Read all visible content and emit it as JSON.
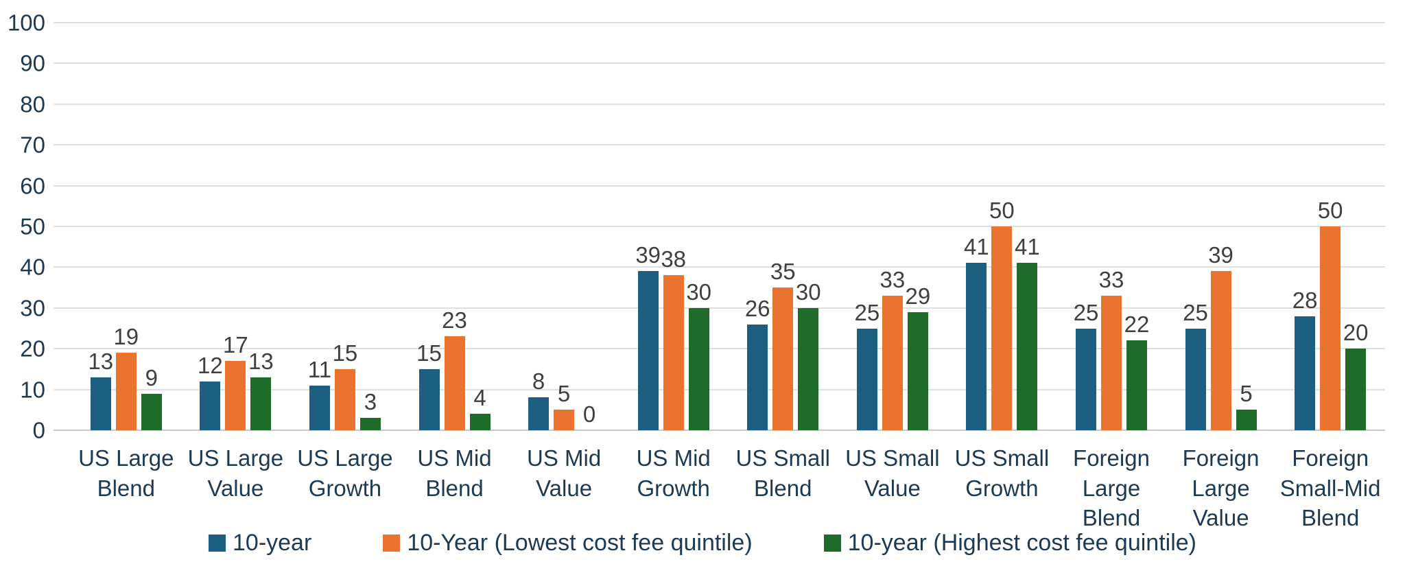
{
  "chart_data": {
    "type": "bar",
    "title": "",
    "xlabel": "",
    "ylabel": "",
    "categories": [
      "US Large Blend",
      "US Large Value",
      "US Large Growth",
      "US Mid Blend",
      "US Mid Value",
      "US Mid Growth",
      "US Small Blend",
      "US Small Value",
      "US Small Growth",
      "Foreign Large Blend",
      "Foreign Large Value",
      "Foreign Small-Mid Blend"
    ],
    "series": [
      {
        "name": "10-year",
        "color": "#1D5F80",
        "values": [
          13,
          12,
          11,
          15,
          8,
          39,
          26,
          25,
          41,
          25,
          25,
          28
        ]
      },
      {
        "name": "10-Year (Lowest cost fee quintile)",
        "color": "#EA732F",
        "values": [
          19,
          17,
          15,
          23,
          5,
          38,
          35,
          33,
          50,
          33,
          39,
          50
        ]
      },
      {
        "name": "10-year (Highest cost fee quintile)",
        "color": "#1E6B2A",
        "values": [
          9,
          13,
          3,
          4,
          0,
          30,
          30,
          29,
          41,
          22,
          5,
          20
        ]
      }
    ],
    "ylim": [
      0,
      100
    ],
    "yticks": [
      0,
      10,
      20,
      30,
      40,
      50,
      60,
      70,
      80,
      90,
      100
    ],
    "grid": true,
    "data_labels": true,
    "legend_position": "bottom"
  },
  "styles": {
    "background": "#FFFFFF",
    "axis_text": "#1D3A52",
    "value_label_text": "#3F3F3F",
    "gridline": "#DFDFDF",
    "baseline": "#C9C9C9"
  }
}
